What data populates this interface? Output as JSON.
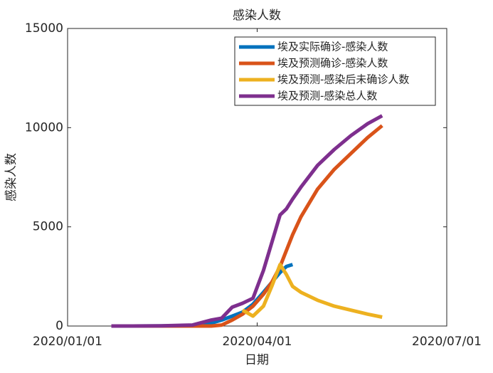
{
  "chart_data": {
    "type": "line",
    "title": "感染人数",
    "xlabel": "日期",
    "ylabel": "感染人数",
    "x": [
      "2020-01-22",
      "2020-02-01",
      "2020-02-15",
      "2020-03-01",
      "2020-03-10",
      "2020-03-15",
      "2020-03-20",
      "2020-03-25",
      "2020-03-30",
      "2020-04-04",
      "2020-04-08",
      "2020-04-12",
      "2020-04-15",
      "2020-04-18",
      "2020-04-22",
      "2020-04-30",
      "2020-05-08",
      "2020-05-16",
      "2020-05-24",
      "2020-05-31"
    ],
    "series": [
      {
        "name": "埃及实际确诊-感染人数",
        "color": "#0072BD",
        "values": [
          0,
          0,
          5,
          30,
          150,
          300,
          500,
          700,
          1100,
          1700,
          2200,
          2700,
          3000,
          3100,
          null,
          null,
          null,
          null,
          null,
          null
        ]
      },
      {
        "name": "埃及预测确诊-感染人数",
        "color": "#D95319",
        "values": [
          0,
          0,
          0,
          0,
          0,
          50,
          300,
          600,
          1000,
          1600,
          2200,
          3000,
          3800,
          4600,
          5500,
          6900,
          7900,
          8700,
          9500,
          10100
        ]
      },
      {
        "name": "埃及预测-感染后未确诊人数",
        "color": "#EDB120",
        "values": [
          null,
          null,
          null,
          null,
          null,
          null,
          null,
          800,
          500,
          1000,
          2000,
          3100,
          2600,
          2000,
          1700,
          1300,
          1000,
          800,
          600,
          450
        ]
      },
      {
        "name": "埃及预测-感染总人数",
        "color": "#7E2F8E",
        "values": [
          0,
          0,
          10,
          50,
          300,
          400,
          950,
          1150,
          1400,
          2800,
          4200,
          5600,
          5900,
          6400,
          7000,
          8100,
          8900,
          9600,
          10200,
          10600
        ]
      }
    ],
    "xlim": [
      "2020-01-01",
      "2020-07-01"
    ],
    "xticks": [
      {
        "value": "2020-01-01",
        "label": "2020/01/01"
      },
      {
        "value": "2020-04-01",
        "label": "2020/04/01"
      },
      {
        "value": "2020-07-01",
        "label": "2020/07/01"
      }
    ],
    "ylim": [
      0,
      15000
    ],
    "yticks": [
      0,
      5000,
      10000,
      15000
    ],
    "legend": "upper right"
  }
}
